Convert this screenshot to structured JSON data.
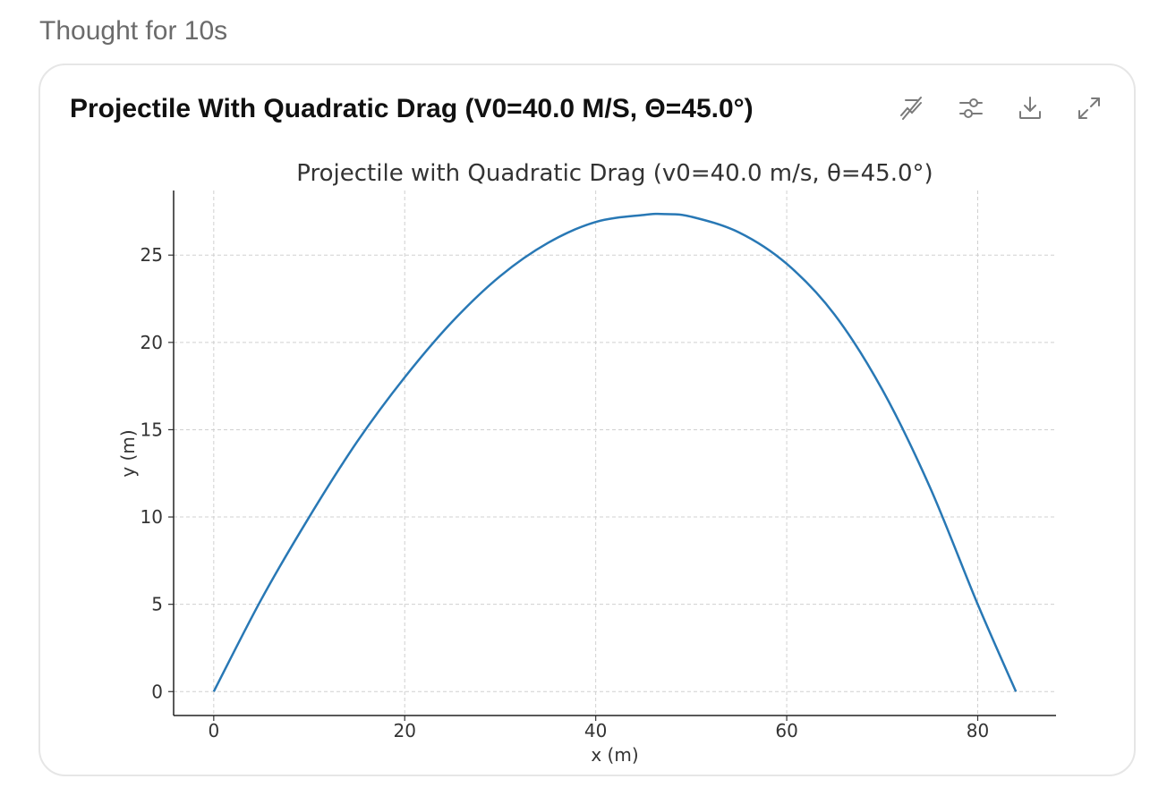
{
  "header": {
    "thought_label": "Thought for 10s"
  },
  "card": {
    "title": "Projectile With Quadratic Drag (V0=40.0 M/S, Θ=45.0°)",
    "toolbar": [
      {
        "name": "disable-interactive-button",
        "icon": "chart-off-icon"
      },
      {
        "name": "chart-settings-button",
        "icon": "sliders-icon"
      },
      {
        "name": "download-button",
        "icon": "download-icon"
      },
      {
        "name": "expand-button",
        "icon": "expand-icon"
      }
    ]
  },
  "chart_data": {
    "type": "line",
    "title": "Projectile with Quadratic Drag (v0=40.0 m/s, θ=45.0°)",
    "xlabel": "x (m)",
    "ylabel": "y (m)",
    "xlim": [
      -4.2,
      88.2
    ],
    "ylim": [
      -1.37,
      28.7
    ],
    "xticks": [
      0,
      20,
      40,
      60,
      80
    ],
    "yticks": [
      0,
      5,
      10,
      15,
      20,
      25
    ],
    "grid": true,
    "series": [
      {
        "color": "#2878b5",
        "x": [
          0,
          5,
          10,
          15,
          20,
          25,
          30,
          35,
          40,
          45,
          47.3,
          50,
          55,
          60,
          65,
          70,
          75,
          80,
          84
        ],
        "y": [
          0,
          5.3,
          10.0,
          14.3,
          18.0,
          21.2,
          23.8,
          25.7,
          26.9,
          27.3,
          27.35,
          27.2,
          26.3,
          24.5,
          21.6,
          17.3,
          11.7,
          5.0,
          0
        ]
      }
    ]
  }
}
